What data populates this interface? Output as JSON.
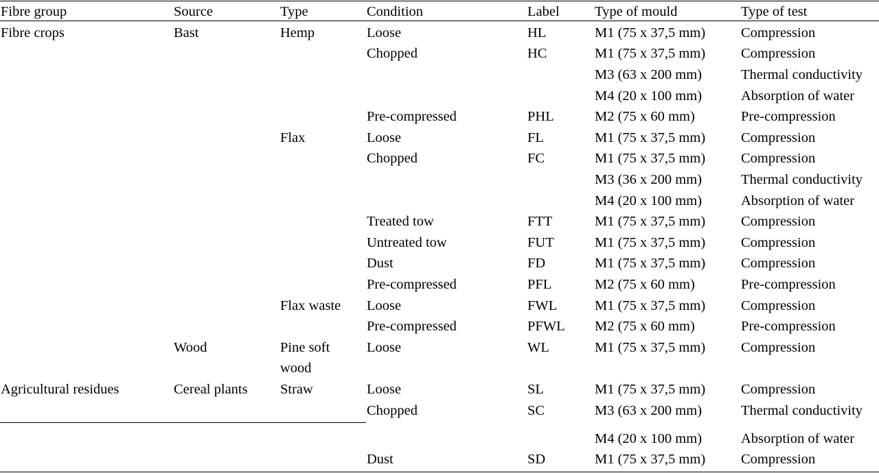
{
  "table": {
    "headers": [
      "Fibre group",
      "Source",
      "Type",
      "Condition",
      "Label",
      "Type of mould",
      "Type of test"
    ],
    "rows": [
      [
        "Fibre crops",
        "Bast",
        "Hemp",
        "Loose",
        "HL",
        "M1 (75 x 37,5 mm)",
        "Compression"
      ],
      [
        "",
        "",
        "",
        "Chopped",
        "HC",
        "M1 (75 x 37,5 mm)",
        "Compression"
      ],
      [
        "",
        "",
        "",
        "",
        "",
        "M3 (63 x 200 mm)",
        "Thermal conductivity"
      ],
      [
        "",
        "",
        "",
        "",
        "",
        "M4 (20 x 100 mm)",
        "Absorption of water"
      ],
      [
        "",
        "",
        "",
        "Pre-compressed",
        "PHL",
        "M2 (75 x 60 mm)",
        "Pre-compression"
      ],
      [
        "",
        "",
        "Flax",
        "Loose",
        "FL",
        "M1 (75 x 37,5 mm)",
        "Compression"
      ],
      [
        "",
        "",
        "",
        "Chopped",
        "FC",
        "M1 (75 x 37,5 mm)",
        "Compression"
      ],
      [
        "",
        "",
        "",
        "",
        "",
        "M3 (36 x 200 mm)",
        "Thermal conductivity"
      ],
      [
        "",
        "",
        "",
        "",
        "",
        "M4 (20 x 100 mm)",
        "Absorption of water"
      ],
      [
        "",
        "",
        "",
        "Treated tow",
        "FTT",
        "M1 (75 x 37,5 mm)",
        "Compression"
      ],
      [
        "",
        "",
        "",
        "Untreated tow",
        "FUT",
        "M1 (75 x 37,5 mm)",
        "Compression"
      ],
      [
        "",
        "",
        "",
        "Dust",
        "FD",
        "M1 (75 x 37,5 mm)",
        "Compression"
      ],
      [
        "",
        "",
        "",
        "Pre-compressed",
        "PFL",
        "M2 (75 x 60 mm)",
        "Pre-compression"
      ],
      [
        "",
        "",
        "Flax waste",
        "Loose",
        "FWL",
        "M1 (75 x 37,5 mm)",
        "Compression"
      ],
      [
        "",
        "",
        "",
        "Pre-compressed",
        "PFWL",
        "M2 (75 x 60 mm)",
        "Pre-compression"
      ],
      [
        "",
        "Wood",
        "Pine soft",
        "Loose",
        "WL",
        "M1 (75 x 37,5 mm)",
        "Compression"
      ],
      [
        "",
        "",
        "wood",
        "",
        "",
        "",
        ""
      ],
      [
        "Agricultural residues",
        "Cereal plants",
        "Straw",
        "Loose",
        "SL",
        "M1 (75 x 37,5 mm)",
        "Compression"
      ],
      [
        "",
        "",
        "",
        "Chopped",
        "SC",
        "M3 (63 x 200 mm)",
        "Thermal conductivity"
      ],
      [
        "",
        "",
        "",
        "",
        "",
        "M4 (20 x 100 mm)",
        "Absorption of water"
      ],
      [
        "",
        "",
        "",
        "Dust",
        "SD",
        "M1 (75 x 37,5 mm)",
        "Compression"
      ]
    ]
  }
}
